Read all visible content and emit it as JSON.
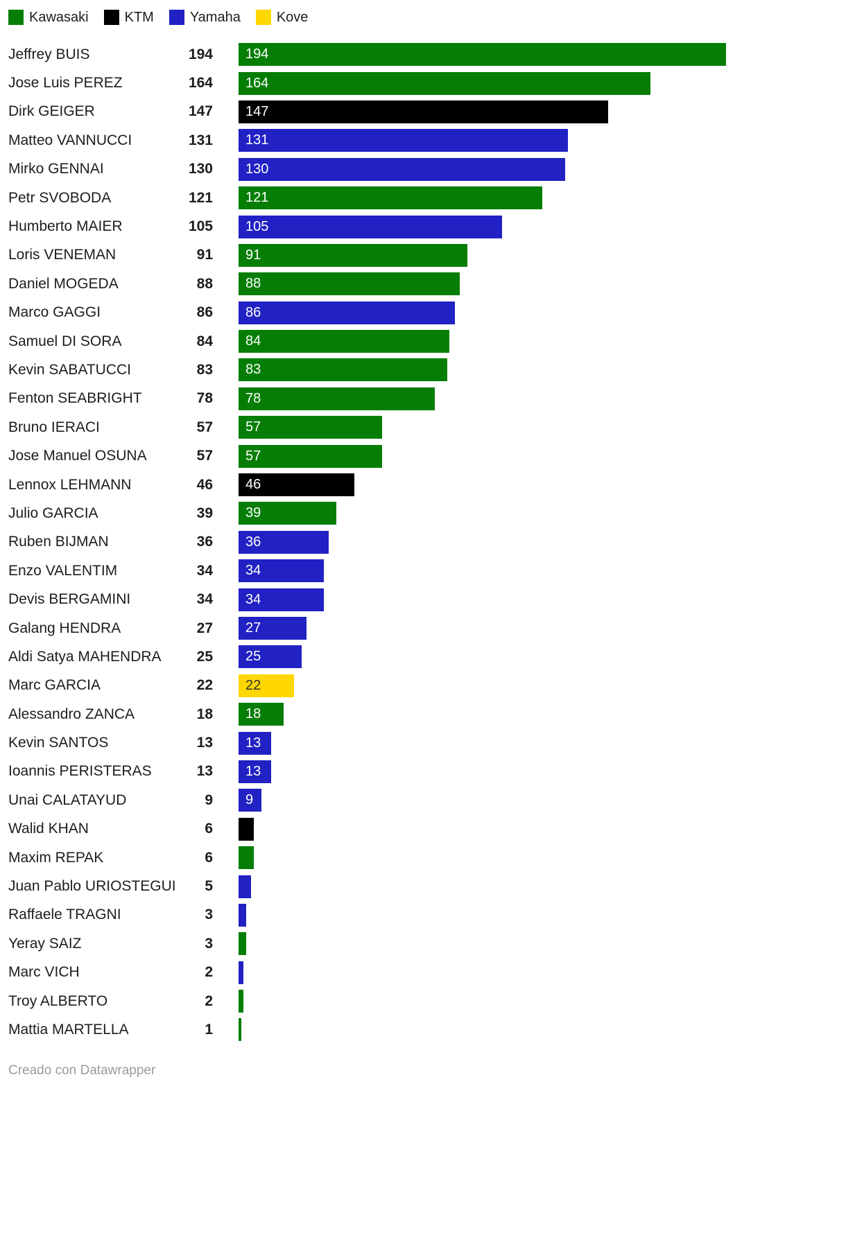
{
  "legend": {
    "items": [
      {
        "label": "Kawasaki",
        "color": "#067e06"
      },
      {
        "label": "KTM",
        "color": "#000000"
      },
      {
        "label": "Yamaha",
        "color": "#2121c4"
      },
      {
        "label": "Kove",
        "color": "#ffd700"
      }
    ]
  },
  "footer": {
    "text": "Creado con Datawrapper"
  },
  "chart_data": {
    "type": "bar",
    "orientation": "horizontal",
    "title": "",
    "xlabel": "",
    "ylabel": "",
    "xlim": [
      0,
      194
    ],
    "grid": false,
    "legend_position": "top",
    "value_labels": "inside-left",
    "series_colors": {
      "Kawasaki": "#067e06",
      "KTM": "#000000",
      "Yamaha": "#2121c4",
      "Kove": "#ffd700"
    },
    "rows": [
      {
        "name": "Jeffrey BUIS",
        "value": 194,
        "team": "Kawasaki"
      },
      {
        "name": "Jose Luis PEREZ",
        "value": 164,
        "team": "Kawasaki"
      },
      {
        "name": "Dirk GEIGER",
        "value": 147,
        "team": "KTM"
      },
      {
        "name": "Matteo VANNUCCI",
        "value": 131,
        "team": "Yamaha"
      },
      {
        "name": "Mirko GENNAI",
        "value": 130,
        "team": "Yamaha"
      },
      {
        "name": "Petr SVOBODA",
        "value": 121,
        "team": "Kawasaki"
      },
      {
        "name": "Humberto MAIER",
        "value": 105,
        "team": "Yamaha"
      },
      {
        "name": "Loris VENEMAN",
        "value": 91,
        "team": "Kawasaki"
      },
      {
        "name": "Daniel MOGEDA",
        "value": 88,
        "team": "Kawasaki"
      },
      {
        "name": "Marco GAGGI",
        "value": 86,
        "team": "Yamaha"
      },
      {
        "name": "Samuel DI SORA",
        "value": 84,
        "team": "Kawasaki"
      },
      {
        "name": "Kevin SABATUCCI",
        "value": 83,
        "team": "Kawasaki"
      },
      {
        "name": "Fenton SEABRIGHT",
        "value": 78,
        "team": "Kawasaki"
      },
      {
        "name": "Bruno IERACI",
        "value": 57,
        "team": "Kawasaki"
      },
      {
        "name": "Jose Manuel OSUNA",
        "value": 57,
        "team": "Kawasaki"
      },
      {
        "name": "Lennox LEHMANN",
        "value": 46,
        "team": "KTM"
      },
      {
        "name": "Julio GARCIA",
        "value": 39,
        "team": "Kawasaki"
      },
      {
        "name": "Ruben BIJMAN",
        "value": 36,
        "team": "Yamaha"
      },
      {
        "name": "Enzo VALENTIM",
        "value": 34,
        "team": "Yamaha"
      },
      {
        "name": "Devis BERGAMINI",
        "value": 34,
        "team": "Yamaha"
      },
      {
        "name": "Galang HENDRA",
        "value": 27,
        "team": "Yamaha"
      },
      {
        "name": "Aldi Satya MAHENDRA",
        "value": 25,
        "team": "Yamaha"
      },
      {
        "name": "Marc GARCIA",
        "value": 22,
        "team": "Kove"
      },
      {
        "name": "Alessandro ZANCA",
        "value": 18,
        "team": "Kawasaki"
      },
      {
        "name": "Kevin SANTOS",
        "value": 13,
        "team": "Yamaha"
      },
      {
        "name": "Ioannis PERISTERAS",
        "value": 13,
        "team": "Yamaha"
      },
      {
        "name": "Unai CALATAYUD",
        "value": 9,
        "team": "Yamaha"
      },
      {
        "name": "Walid KHAN",
        "value": 6,
        "team": "KTM"
      },
      {
        "name": "Maxim REPAK",
        "value": 6,
        "team": "Kawasaki"
      },
      {
        "name": "Juan Pablo URIOSTEGUI",
        "value": 5,
        "team": "Yamaha"
      },
      {
        "name": "Raffaele TRAGNI",
        "value": 3,
        "team": "Yamaha"
      },
      {
        "name": "Yeray SAIZ",
        "value": 3,
        "team": "Kawasaki"
      },
      {
        "name": "Marc VICH",
        "value": 2,
        "team": "Yamaha"
      },
      {
        "name": "Troy ALBERTO",
        "value": 2,
        "team": "Kawasaki"
      },
      {
        "name": "Mattia MARTELLA",
        "value": 1,
        "team": "Kawasaki"
      }
    ]
  }
}
